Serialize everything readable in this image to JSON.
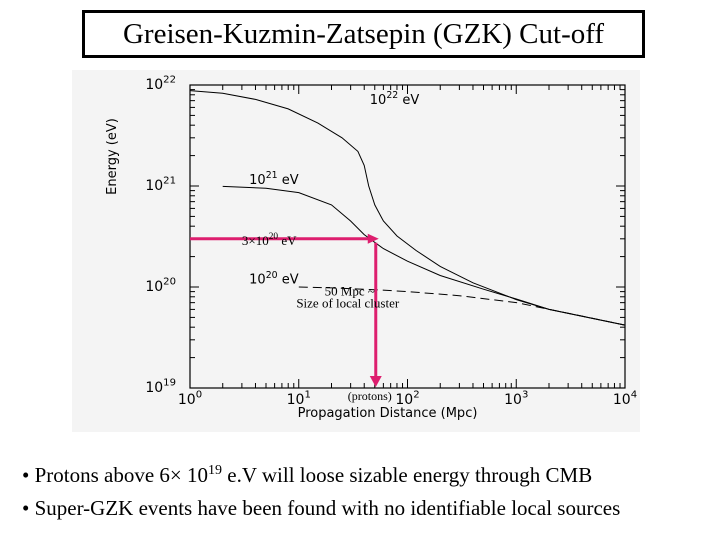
{
  "title": "Greisen-Kuzmin-Zatsepin (GZK) Cut-off",
  "chart_data": {
    "type": "line",
    "x_scale": "log",
    "y_scale": "log",
    "xlim": [
      1,
      10000
    ],
    "ylim": [
      1e+19,
      1e+22
    ],
    "xlabel": "Propagation Distance (Mpc)",
    "ylabel": "Energy (eV)",
    "x_ticks": [
      {
        "value": 1,
        "base": "10",
        "exp": "0"
      },
      {
        "value": 10,
        "base": "10",
        "exp": "1"
      },
      {
        "value": 100,
        "base": "10",
        "exp": "2"
      },
      {
        "value": 1000,
        "base": "10",
        "exp": "3"
      },
      {
        "value": 10000,
        "base": "10",
        "exp": "4"
      }
    ],
    "y_ticks": [
      {
        "value": 1e+19,
        "base": "10",
        "exp": "19"
      },
      {
        "value": 1e+20,
        "base": "10",
        "exp": "20"
      },
      {
        "value": 1e+21,
        "base": "10",
        "exp": "21"
      },
      {
        "value": 1e+22,
        "base": "10",
        "exp": "22"
      }
    ],
    "series": [
      {
        "name": "10^22 eV",
        "label_base": "10",
        "label_exp": "22",
        "label_unit": "eV",
        "label_at": [
          45,
          6.5e+21
        ],
        "style": "solid",
        "points": [
          [
            1,
            8.8e+21
          ],
          [
            2,
            8.3e+21
          ],
          [
            4,
            7.2e+21
          ],
          [
            8,
            5.8e+21
          ],
          [
            15,
            4.2e+21
          ],
          [
            25,
            3e+21
          ],
          [
            35,
            2.2e+21
          ],
          [
            40,
            1.6e+21
          ],
          [
            44,
            1e+21
          ],
          [
            50,
            6.5e+20
          ],
          [
            60,
            4.5e+20
          ],
          [
            80,
            3.2e+20
          ],
          [
            120,
            2.3e+20
          ],
          [
            200,
            1.6e+20
          ],
          [
            400,
            1.1e+20
          ],
          [
            1000,
            7.5e+19
          ],
          [
            2000,
            6e+19
          ],
          [
            10000,
            4.2e+19
          ]
        ]
      },
      {
        "name": "10^21 eV",
        "label_base": "10",
        "label_exp": "21",
        "label_unit": "eV",
        "label_at": [
          3.5,
          1.05e+21
        ],
        "style": "solid",
        "points": [
          [
            2,
            9.9e+20
          ],
          [
            5,
            9.5e+20
          ],
          [
            10,
            8.6e+20
          ],
          [
            20,
            6.5e+20
          ],
          [
            30,
            4.5e+20
          ],
          [
            40,
            3.3e+20
          ],
          [
            60,
            2.4e+20
          ],
          [
            100,
            1.8e+20
          ],
          [
            200,
            1.3e+20
          ],
          [
            500,
            9.5e+19
          ],
          [
            1000,
            7.6e+19
          ],
          [
            2000,
            6e+19
          ],
          [
            10000,
            4.2e+19
          ]
        ]
      },
      {
        "name": "10^20 eV",
        "label_base": "10",
        "label_exp": "20",
        "label_unit": "eV",
        "label_at": [
          3.5,
          1.08e+20
        ],
        "style": "dashed",
        "points": [
          [
            10,
            1e+20
          ],
          [
            20,
            9.8e+19
          ],
          [
            50,
            9.4e+19
          ],
          [
            100,
            9e+19
          ],
          [
            300,
            8.2e+19
          ],
          [
            1000,
            7e+19
          ],
          [
            3000,
            5.5e+19
          ],
          [
            10000,
            4.2e+19
          ]
        ]
      }
    ],
    "annotations": [
      {
        "text_base": "3×10",
        "text_exp": "20",
        "text_unit": " eV",
        "at": [
          3.0,
          2.6e+20
        ]
      },
      {
        "text": "50 Mpc ~",
        "at": [
          50,
          8.2e+19
        ]
      },
      {
        "text": "Size of local cluster",
        "at": [
          50,
          6.3e+19
        ]
      },
      {
        "text": "(protons)",
        "at": [
          45,
          1.2e+19
        ]
      }
    ],
    "cut_marker": {
      "x": 50,
      "y": 3e+20,
      "color": "#dd1e6e"
    }
  },
  "bullets": [
    {
      "prefix": "• Protons above 6× 10",
      "sup": "19",
      "suffix": " e.V will loose sizable energy through CMB"
    },
    {
      "text": "• Super-GZK events have been found with no identifiable local sources"
    }
  ]
}
